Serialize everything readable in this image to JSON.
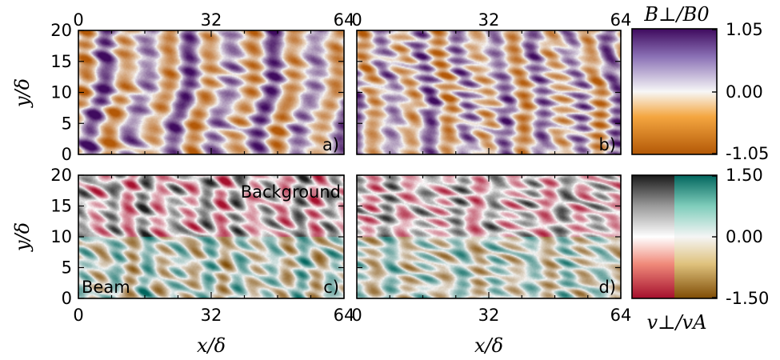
{
  "chart_data": [
    {
      "type": "heatmap",
      "panel_label": "a)",
      "field": "B_perp",
      "xlim": [
        0,
        64
      ],
      "ylim": [
        0,
        20
      ],
      "xticks_top": [
        "0",
        "32",
        "64"
      ],
      "xticks_bottom": [],
      "yticks": [
        "0",
        "5",
        "10",
        "15",
        "20"
      ],
      "ylabel": "y/δ",
      "xlabel": "",
      "pattern": {
        "wavenumber": 6.3,
        "phase": 0.0,
        "tilt": -0.08,
        "amplitude": 0.8
      },
      "region_labels": []
    },
    {
      "type": "heatmap",
      "panel_label": "b)",
      "field": "B_perp",
      "xlim": [
        0,
        64
      ],
      "ylim": [
        0,
        20
      ],
      "xticks_top": [
        "0",
        "32",
        "64"
      ],
      "xticks_bottom": [],
      "yticks": [],
      "ylabel": "",
      "xlabel": "",
      "pattern": {
        "wavenumber": 7.0,
        "phase": 1.3,
        "tilt": 0.05,
        "amplitude": 0.7
      },
      "region_labels": []
    },
    {
      "type": "heatmap",
      "panel_label": "c)",
      "field": "v_perp",
      "xlim": [
        0,
        64
      ],
      "ylim": [
        0,
        20
      ],
      "xticks_top": [],
      "xticks_bottom": [
        "0",
        "32",
        "64"
      ],
      "yticks": [
        "0",
        "5",
        "10",
        "15",
        "20"
      ],
      "ylabel": "y/δ",
      "xlabel": "x/δ",
      "split_y": 10,
      "pattern": {
        "wavenumber": 8.5,
        "phase": 0.6,
        "tilt": 0.0,
        "amplitude": 0.6
      },
      "region_labels": [
        "Background",
        "Beam"
      ]
    },
    {
      "type": "heatmap",
      "panel_label": "d)",
      "field": "v_perp",
      "xlim": [
        0,
        64
      ],
      "ylim": [
        0,
        20
      ],
      "xticks_top": [],
      "xticks_bottom": [
        "0",
        "32",
        "64"
      ],
      "yticks": [],
      "ylabel": "",
      "xlabel": "x/δ",
      "split_y": 10,
      "pattern": {
        "wavenumber": 7.5,
        "phase": 2.1,
        "tilt": 0.0,
        "amplitude": 0.5
      },
      "region_labels": []
    }
  ],
  "colorbars": [
    {
      "label": "B⊥/B0",
      "max_label": "1.05",
      "mid_label": "0.00",
      "min_label": "-1.05",
      "range": [
        -1.05,
        1.05
      ],
      "colors": {
        "high": "#3f0a5e",
        "mid": "#f7f7f7",
        "low": "#b35806"
      }
    },
    {
      "label": "v⊥/vA",
      "max_label": "1.50",
      "mid_label": "0.00",
      "min_label": "-1.50",
      "range": [
        -1.5,
        1.5
      ],
      "background_colors": {
        "high": "#1a1a1a",
        "mid": "#ffffff",
        "low": "#a50f2d"
      },
      "beam_colors": {
        "high": "#01665e",
        "mid": "#f5f5f5",
        "low": "#7f4c05"
      }
    }
  ]
}
